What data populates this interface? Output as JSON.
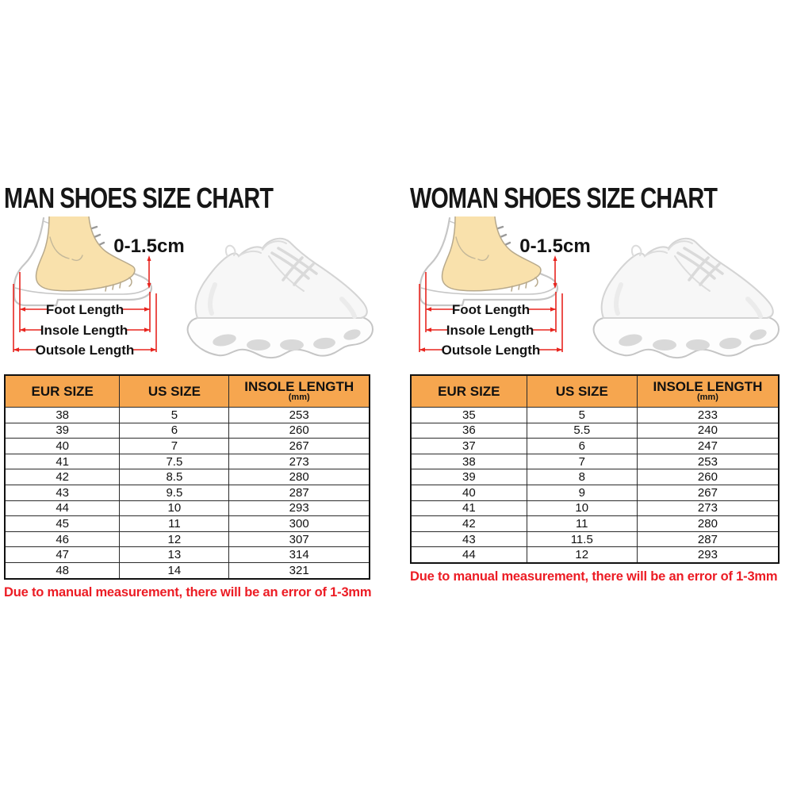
{
  "colors": {
    "header_bg": "#F6A64F",
    "red": "#E8251F",
    "note_red": "#EC1C24",
    "skin": "#F9E1AC"
  },
  "panels": [
    {
      "id": "man",
      "title": "MAN SHOES SIZE CHART",
      "diagram": {
        "tolerance_label": "0-1.5cm",
        "foot_length_label": "Foot Length",
        "insole_length_label": "Insole Length",
        "outsole_length_label": "Outsole Length"
      },
      "table": {
        "headers": [
          "EUR SIZE",
          "US SIZE",
          "INSOLE LENGTH"
        ],
        "insole_unit": "(mm)",
        "rows": [
          [
            "38",
            "5",
            "253"
          ],
          [
            "39",
            "6",
            "260"
          ],
          [
            "40",
            "7",
            "267"
          ],
          [
            "41",
            "7.5",
            "273"
          ],
          [
            "42",
            "8.5",
            "280"
          ],
          [
            "43",
            "9.5",
            "287"
          ],
          [
            "44",
            "10",
            "293"
          ],
          [
            "45",
            "11",
            "300"
          ],
          [
            "46",
            "12",
            "307"
          ],
          [
            "47",
            "13",
            "314"
          ],
          [
            "48",
            "14",
            "321"
          ]
        ]
      },
      "note": "Due to manual measurement, there will be an error of 1-3mm"
    },
    {
      "id": "woman",
      "title": "WOMAN SHOES SIZE CHART",
      "diagram": {
        "tolerance_label": "0-1.5cm",
        "foot_length_label": "Foot Length",
        "insole_length_label": "Insole Length",
        "outsole_length_label": "Outsole Length"
      },
      "table": {
        "headers": [
          "EUR SIZE",
          "US SIZE",
          "INSOLE LENGTH"
        ],
        "insole_unit": "(mm)",
        "rows": [
          [
            "35",
            "5",
            "233"
          ],
          [
            "36",
            "5.5",
            "240"
          ],
          [
            "37",
            "6",
            "247"
          ],
          [
            "38",
            "7",
            "253"
          ],
          [
            "39",
            "8",
            "260"
          ],
          [
            "40",
            "9",
            "267"
          ],
          [
            "41",
            "10",
            "273"
          ],
          [
            "42",
            "11",
            "280"
          ],
          [
            "43",
            "11.5",
            "287"
          ],
          [
            "44",
            "12",
            "293"
          ]
        ]
      },
      "note": "Due to manual measurement, there will be an error of 1-3mm"
    }
  ]
}
